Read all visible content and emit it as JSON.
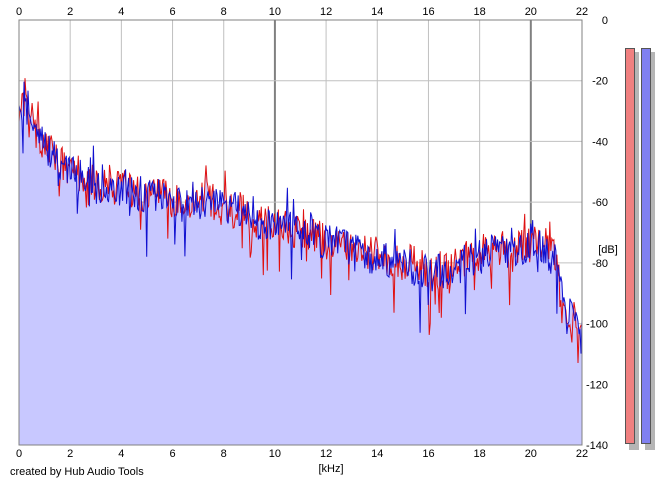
{
  "chart_data": {
    "type": "area",
    "xlabel": "[kHz]",
    "ylabel": "[dB]",
    "xlim": [
      0,
      22
    ],
    "ylim": [
      -140,
      0
    ],
    "x_ticks": [
      "0",
      "2",
      "4",
      "6",
      "8",
      "10",
      "12",
      "14",
      "16",
      "18",
      "20",
      "22"
    ],
    "y_ticks": [
      "0",
      "-20",
      "-40",
      "-60",
      "-80",
      "-100",
      "-120",
      "-140"
    ],
    "grid": true,
    "colors": {
      "fill": "#c8c8ff",
      "left_channel": "#e01010",
      "right_channel": "#1010d0",
      "grid": "#c0c0c0",
      "grid_major": "#808080"
    },
    "series": [
      {
        "values": [
          [
            0.1,
            -31
          ],
          [
            0.25,
            -24
          ],
          [
            0.4,
            -28
          ],
          [
            0.6,
            -36
          ],
          [
            0.8,
            -39
          ],
          [
            1.0,
            -40
          ],
          [
            1.2,
            -43
          ],
          [
            1.4,
            -46
          ],
          [
            1.6,
            -47
          ],
          [
            1.8,
            -49
          ],
          [
            2.0,
            -50
          ],
          [
            2.2,
            -50
          ],
          [
            2.4,
            -51
          ],
          [
            2.6,
            -52
          ],
          [
            2.8,
            -53
          ],
          [
            3.0,
            -54
          ],
          [
            3.2,
            -54
          ],
          [
            3.4,
            -55
          ],
          [
            3.6,
            -55
          ],
          [
            3.8,
            -55
          ],
          [
            4.0,
            -56
          ],
          [
            4.2,
            -55
          ],
          [
            4.4,
            -57
          ],
          [
            4.6,
            -56
          ],
          [
            4.8,
            -58
          ],
          [
            5.0,
            -58
          ],
          [
            5.2,
            -57
          ],
          [
            5.4,
            -58
          ],
          [
            5.6,
            -58
          ],
          [
            5.8,
            -59
          ],
          [
            6.0,
            -59
          ],
          [
            6.2,
            -60
          ],
          [
            6.4,
            -59
          ],
          [
            6.6,
            -60
          ],
          [
            6.8,
            -58
          ],
          [
            7.0,
            -59
          ],
          [
            7.2,
            -57
          ],
          [
            7.4,
            -58
          ],
          [
            7.6,
            -60
          ],
          [
            7.8,
            -61
          ],
          [
            8.0,
            -62
          ],
          [
            8.2,
            -61
          ],
          [
            8.4,
            -63
          ],
          [
            8.6,
            -62
          ],
          [
            8.8,
            -64
          ],
          [
            9.0,
            -63
          ],
          [
            9.2,
            -66
          ],
          [
            9.4,
            -66
          ],
          [
            9.6,
            -67
          ],
          [
            9.8,
            -66
          ],
          [
            10.0,
            -67
          ],
          [
            10.2,
            -68
          ],
          [
            10.4,
            -67
          ],
          [
            10.6,
            -68
          ],
          [
            10.8,
            -70
          ],
          [
            11.0,
            -69
          ],
          [
            11.2,
            -70
          ],
          [
            11.4,
            -70
          ],
          [
            11.6,
            -72
          ],
          [
            11.8,
            -71
          ],
          [
            12.0,
            -73
          ],
          [
            12.2,
            -73
          ],
          [
            12.4,
            -72
          ],
          [
            12.6,
            -74
          ],
          [
            12.8,
            -74
          ],
          [
            13.0,
            -75
          ],
          [
            13.2,
            -75
          ],
          [
            13.4,
            -76
          ],
          [
            13.6,
            -76
          ],
          [
            13.8,
            -77
          ],
          [
            14.0,
            -77
          ],
          [
            14.2,
            -78
          ],
          [
            14.4,
            -78
          ],
          [
            14.6,
            -79
          ],
          [
            14.8,
            -80
          ],
          [
            15.0,
            -79
          ],
          [
            15.2,
            -80
          ],
          [
            15.4,
            -80
          ],
          [
            15.6,
            -81
          ],
          [
            15.8,
            -82
          ],
          [
            16.0,
            -83
          ],
          [
            16.2,
            -83
          ],
          [
            16.4,
            -84
          ],
          [
            16.6,
            -82
          ],
          [
            16.8,
            -83
          ],
          [
            17.0,
            -81
          ],
          [
            17.2,
            -80
          ],
          [
            17.4,
            -79
          ],
          [
            17.6,
            -78
          ],
          [
            17.8,
            -79
          ],
          [
            18.0,
            -77
          ],
          [
            18.2,
            -76
          ],
          [
            18.4,
            -77
          ],
          [
            18.6,
            -76
          ],
          [
            18.8,
            -75
          ],
          [
            19.0,
            -75
          ],
          [
            19.2,
            -76
          ],
          [
            19.4,
            -75
          ],
          [
            19.6,
            -74
          ],
          [
            19.8,
            -74
          ],
          [
            20.0,
            -74
          ],
          [
            20.2,
            -73
          ],
          [
            20.4,
            -74
          ],
          [
            20.6,
            -75
          ],
          [
            20.8,
            -77
          ],
          [
            21.0,
            -79
          ],
          [
            21.2,
            -88
          ],
          [
            21.4,
            -95
          ],
          [
            21.6,
            -99
          ],
          [
            21.8,
            -100
          ],
          [
            22.0,
            -101
          ]
        ]
      },
      {
        "values": [
          [
            0.1,
            -28
          ],
          [
            0.25,
            -25
          ],
          [
            0.4,
            -30
          ],
          [
            0.6,
            -35
          ],
          [
            0.8,
            -40
          ],
          [
            1.0,
            -42
          ],
          [
            1.2,
            -44
          ],
          [
            1.4,
            -45
          ],
          [
            1.6,
            -48
          ],
          [
            1.8,
            -48
          ],
          [
            2.0,
            -49
          ],
          [
            2.2,
            -51
          ],
          [
            2.4,
            -52
          ],
          [
            2.6,
            -51
          ],
          [
            2.8,
            -53
          ],
          [
            3.0,
            -53
          ],
          [
            3.2,
            -55
          ],
          [
            3.4,
            -54
          ],
          [
            3.6,
            -56
          ],
          [
            3.8,
            -56
          ],
          [
            4.0,
            -55
          ],
          [
            4.2,
            -57
          ],
          [
            4.4,
            -56
          ],
          [
            4.6,
            -57
          ],
          [
            4.8,
            -57
          ],
          [
            5.0,
            -59
          ],
          [
            5.2,
            -58
          ],
          [
            5.4,
            -59
          ],
          [
            5.6,
            -57
          ],
          [
            5.8,
            -60
          ],
          [
            6.0,
            -60
          ],
          [
            6.2,
            -59
          ],
          [
            6.4,
            -61
          ],
          [
            6.6,
            -61
          ],
          [
            6.8,
            -60
          ],
          [
            7.0,
            -61
          ],
          [
            7.2,
            -60
          ],
          [
            7.4,
            -61
          ],
          [
            7.6,
            -62
          ],
          [
            7.8,
            -61
          ],
          [
            8.0,
            -63
          ],
          [
            8.2,
            -63
          ],
          [
            8.4,
            -62
          ],
          [
            8.6,
            -64
          ],
          [
            8.8,
            -63
          ],
          [
            9.0,
            -65
          ],
          [
            9.2,
            -65
          ],
          [
            9.4,
            -67
          ],
          [
            9.6,
            -66
          ],
          [
            9.8,
            -68
          ],
          [
            10.0,
            -68
          ],
          [
            10.2,
            -67
          ],
          [
            10.4,
            -69
          ],
          [
            10.6,
            -69
          ],
          [
            10.8,
            -69
          ],
          [
            11.0,
            -71
          ],
          [
            11.2,
            -71
          ],
          [
            11.4,
            -70
          ],
          [
            11.6,
            -71
          ],
          [
            11.8,
            -73
          ],
          [
            12.0,
            -72
          ],
          [
            12.2,
            -74
          ],
          [
            12.4,
            -74
          ],
          [
            12.6,
            -73
          ],
          [
            12.8,
            -75
          ],
          [
            13.0,
            -76
          ],
          [
            13.2,
            -76
          ],
          [
            13.4,
            -75
          ],
          [
            13.6,
            -77
          ],
          [
            13.8,
            -78
          ],
          [
            14.0,
            -78
          ],
          [
            14.2,
            -77
          ],
          [
            14.4,
            -79
          ],
          [
            14.6,
            -80
          ],
          [
            14.8,
            -79
          ],
          [
            15.0,
            -81
          ],
          [
            15.2,
            -81
          ],
          [
            15.4,
            -82
          ],
          [
            15.6,
            -82
          ],
          [
            15.8,
            -83
          ],
          [
            16.0,
            -82
          ],
          [
            16.2,
            -84
          ],
          [
            16.4,
            -83
          ],
          [
            16.6,
            -84
          ],
          [
            16.8,
            -82
          ],
          [
            17.0,
            -82
          ],
          [
            17.2,
            -81
          ],
          [
            17.4,
            -80
          ],
          [
            17.6,
            -79
          ],
          [
            17.8,
            -78
          ],
          [
            18.0,
            -78
          ],
          [
            18.2,
            -77
          ],
          [
            18.4,
            -76
          ],
          [
            18.6,
            -77
          ],
          [
            18.8,
            -76
          ],
          [
            19.0,
            -76
          ],
          [
            19.2,
            -75
          ],
          [
            19.4,
            -76
          ],
          [
            19.6,
            -75
          ],
          [
            19.8,
            -75
          ],
          [
            20.0,
            -73
          ],
          [
            20.2,
            -74
          ],
          [
            20.4,
            -75
          ],
          [
            20.6,
            -76
          ],
          [
            20.8,
            -78
          ],
          [
            21.0,
            -80
          ],
          [
            21.2,
            -87
          ],
          [
            21.4,
            -94
          ],
          [
            21.6,
            -98
          ],
          [
            21.8,
            -101
          ],
          [
            22.0,
            -100
          ]
        ]
      }
    ],
    "level_meters": [
      {
        "channel": "left",
        "level": 1.0,
        "color": "#f08080"
      },
      {
        "channel": "right",
        "level": 1.0,
        "color": "#8080f0"
      }
    ]
  },
  "footer": {
    "credit": "created by Hub Audio Tools"
  }
}
